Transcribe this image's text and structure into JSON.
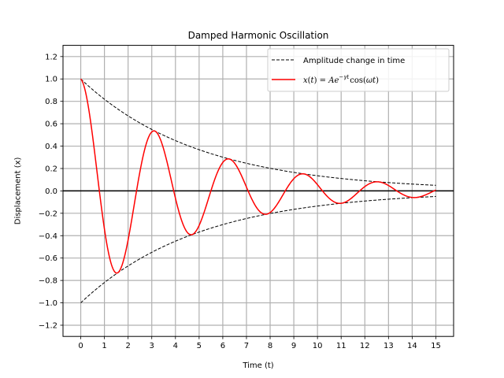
{
  "chart_data": {
    "type": "line",
    "title": "Damped Harmonic Oscillation",
    "xlabel": "Time (t)",
    "ylabel": "Displacement (x)",
    "xlim": [
      -0.75,
      15.75
    ],
    "ylim": [
      -1.3,
      1.3
    ],
    "xticks": [
      0,
      1,
      2,
      3,
      4,
      5,
      6,
      7,
      8,
      9,
      10,
      11,
      12,
      13,
      14,
      15
    ],
    "xtick_labels": [
      "0",
      "1",
      "2",
      "3",
      "4",
      "5",
      "6",
      "7",
      "8",
      "9",
      "10",
      "11",
      "12",
      "13",
      "14",
      "15"
    ],
    "yticks": [
      -1.2,
      -1.0,
      -0.8,
      -0.6,
      -0.4,
      -0.2,
      0.0,
      0.2,
      0.4,
      0.6,
      0.8,
      1.0,
      1.2
    ],
    "ytick_labels": [
      "−1.2",
      "−1.0",
      "−0.8",
      "−0.6",
      "−0.4",
      "−0.2",
      "0.0",
      "0.2",
      "0.4",
      "0.6",
      "0.8",
      "1.0",
      "1.2"
    ],
    "grid": true,
    "legend_position": "top-right",
    "parameters": {
      "A": 1.0,
      "gamma": 0.2,
      "omega": 2.0
    },
    "series": [
      {
        "name": "Amplitude change in time",
        "style": "dashed",
        "color": "#000000",
        "function": "+/- A*exp(-gamma*t)",
        "x": [
          0,
          1,
          2,
          3,
          4,
          5,
          6,
          7,
          8,
          9,
          10,
          11,
          12,
          13,
          14,
          15
        ],
        "y_upper": [
          1.0,
          0.819,
          0.67,
          0.549,
          0.449,
          0.368,
          0.301,
          0.247,
          0.202,
          0.165,
          0.135,
          0.111,
          0.091,
          0.074,
          0.061,
          0.05
        ],
        "y_lower": [
          -1.0,
          -0.819,
          -0.67,
          -0.549,
          -0.449,
          -0.368,
          -0.301,
          -0.247,
          -0.202,
          -0.165,
          -0.135,
          -0.111,
          -0.091,
          -0.074,
          -0.061,
          -0.05
        ]
      },
      {
        "name_parts": [
          "x",
          "(",
          "t",
          ") = ",
          "Ae",
          "−γt",
          "cos(",
          "ωt",
          ")"
        ],
        "style": "solid",
        "color": "#ff0000",
        "function": "A*exp(-gamma*t)*cos(omega*t)",
        "x": [
          0,
          1,
          2,
          3,
          4,
          5,
          6,
          7,
          8,
          9,
          10,
          11,
          12,
          13,
          14,
          15
        ],
        "y": [
          1.0,
          -0.341,
          -0.438,
          0.527,
          -0.065,
          -0.309,
          0.254,
          0.034,
          -0.194,
          0.109,
          0.055,
          -0.111,
          0.039,
          0.047,
          -0.057,
          0.008
        ]
      }
    ],
    "zero_line": {
      "y": 0.0,
      "color": "#000000"
    }
  }
}
